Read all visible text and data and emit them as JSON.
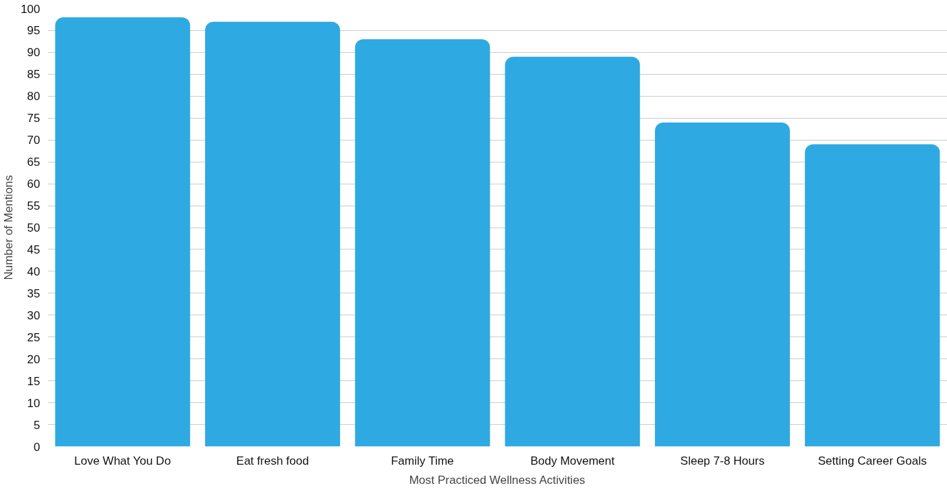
{
  "chart_data": {
    "type": "bar",
    "xlabel": "Most Practiced Wellness Activities",
    "ylabel": "Number of Mentions",
    "categories": [
      "Love What You Do",
      "Eat fresh food",
      "Family Time",
      "Body Movement",
      "Sleep 7-8 Hours",
      "Setting Career Goals"
    ],
    "values": [
      98,
      97,
      93,
      89,
      74,
      69
    ],
    "color": "#2ea9e2",
    "ylim": [
      0,
      100
    ],
    "yticks": [
      0,
      5,
      10,
      15,
      20,
      25,
      30,
      35,
      40,
      45,
      50,
      55,
      60,
      65,
      70,
      75,
      80,
      85,
      90,
      95,
      100
    ],
    "grid": "y"
  }
}
